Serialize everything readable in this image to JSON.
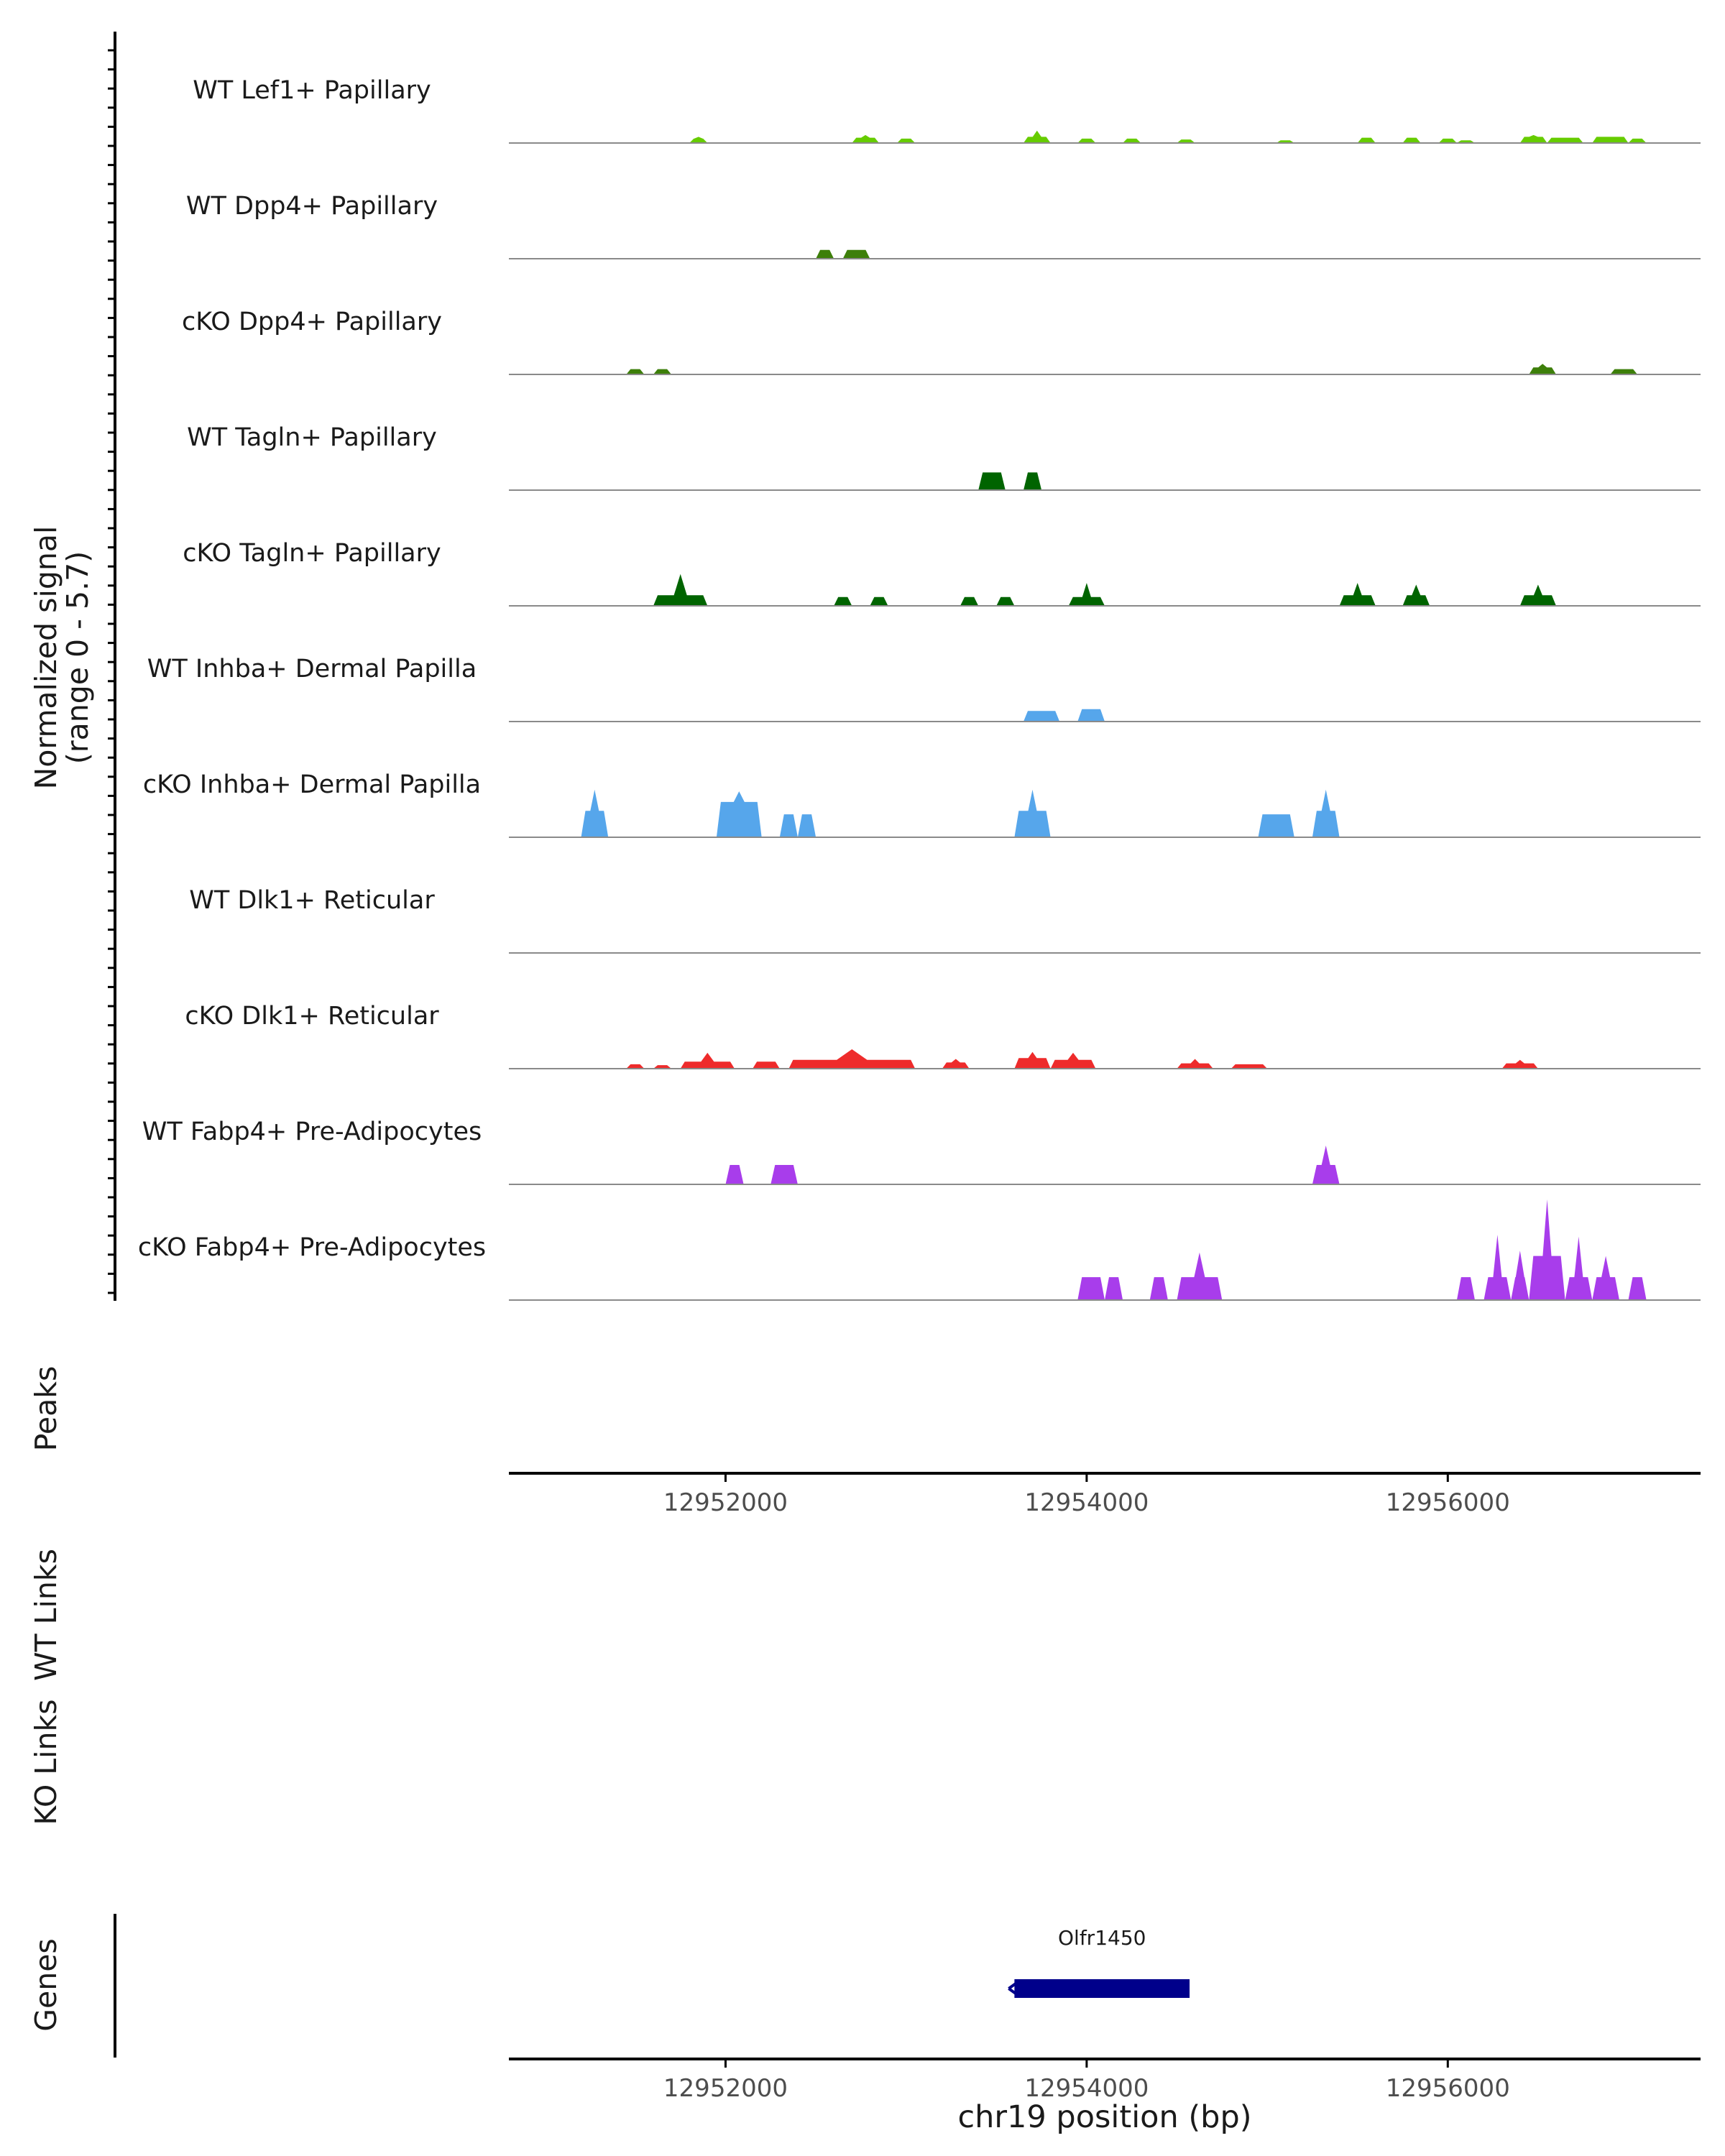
{
  "chart_data": {
    "type": "area",
    "title": "",
    "region": "chr19",
    "xlim": [
      12950800,
      12957400
    ],
    "xlabel": "chr19 position (bp)",
    "x_ticks": [
      12952000,
      12954000,
      12956000
    ],
    "x_tick_labels": [
      "12952000",
      "12954000",
      "12956000"
    ],
    "coverage": {
      "ylabel_line1": "Normalized signal",
      "ylabel_line2": "(range 0 - 5.7)",
      "ylim": [
        0,
        5.7
      ],
      "tracks": [
        {
          "name": "WT Lef1+ Papillary",
          "color": "#66CC00",
          "peaks": [
            [
              12951800,
              12951900,
              0.25,
              0.35
            ],
            [
              12952700,
              12952850,
              0.3,
              0.45
            ],
            [
              12952950,
              12953050,
              0.25
            ],
            [
              12953650,
              12953800,
              0.35,
              0.7
            ],
            [
              12953950,
              12954050,
              0.25
            ],
            [
              12954200,
              12954300,
              0.25
            ],
            [
              12954500,
              12954600,
              0.2
            ],
            [
              12955050,
              12955150,
              0.15
            ],
            [
              12955500,
              12955600,
              0.3
            ],
            [
              12955750,
              12955850,
              0.3
            ],
            [
              12955950,
              12956050,
              0.25
            ],
            [
              12956050,
              12956150,
              0.15
            ],
            [
              12956400,
              12956550,
              0.35,
              0.45
            ],
            [
              12956550,
              12956750,
              0.3
            ],
            [
              12956800,
              12957000,
              0.35
            ],
            [
              12957000,
              12957100,
              0.25
            ]
          ]
        },
        {
          "name": "WT Dpp4+ Papillary",
          "color": "#3D7F0A",
          "peaks": [
            [
              12952500,
              12952600,
              0.5
            ],
            [
              12952650,
              12952800,
              0.5
            ]
          ]
        },
        {
          "name": "cKO Dpp4+ Papillary",
          "color": "#3D7F0A",
          "peaks": [
            [
              12951450,
              12951550,
              0.3
            ],
            [
              12951600,
              12951700,
              0.3
            ],
            [
              12956450,
              12956600,
              0.4,
              0.6
            ],
            [
              12956900,
              12957050,
              0.3
            ]
          ]
        },
        {
          "name": "WT Tagln+ Papillary",
          "color": "#006400",
          "peaks": [
            [
              12953400,
              12953550,
              1.0
            ],
            [
              12953650,
              12953750,
              1.0
            ]
          ]
        },
        {
          "name": "cKO Tagln+ Papillary",
          "color": "#006400",
          "peaks": [
            [
              12951600,
              12951900,
              0.6,
              1.8
            ],
            [
              12952600,
              12952700,
              0.5
            ],
            [
              12952800,
              12952900,
              0.5
            ],
            [
              12953300,
              12953400,
              0.5
            ],
            [
              12953500,
              12953600,
              0.5
            ],
            [
              12953900,
              12954100,
              0.5,
              1.3
            ],
            [
              12955400,
              12955600,
              0.6,
              1.3
            ],
            [
              12955750,
              12955900,
              0.6,
              1.2
            ],
            [
              12956400,
              12956600,
              0.6,
              1.2
            ]
          ]
        },
        {
          "name": "WT Inhba+ Dermal Papilla",
          "color": "#56A6EB",
          "peaks": [
            [
              12953650,
              12953850,
              0.6
            ],
            [
              12953950,
              12954100,
              0.7
            ]
          ]
        },
        {
          "name": "cKO Inhba+ Dermal Papilla",
          "color": "#56A6EB",
          "peaks": [
            [
              12951200,
              12951350,
              1.5,
              2.7
            ],
            [
              12951950,
              12952200,
              2.0,
              2.6
            ],
            [
              12952300,
              12952400,
              1.3
            ],
            [
              12952400,
              12952500,
              1.3
            ],
            [
              12953600,
              12953800,
              1.5,
              2.7
            ],
            [
              12954950,
              12955150,
              1.3
            ],
            [
              12955250,
              12955400,
              1.5,
              2.7
            ]
          ]
        },
        {
          "name": "WT Dlk1+ Reticular",
          "color": "#EE2B2B",
          "peaks": []
        },
        {
          "name": "cKO Dlk1+ Reticular",
          "color": "#EE2B2B",
          "peaks": [
            [
              12951450,
              12951550,
              0.25
            ],
            [
              12951600,
              12951700,
              0.2
            ],
            [
              12951750,
              12952050,
              0.4,
              0.9
            ],
            [
              12952150,
              12952300,
              0.4
            ],
            [
              12952350,
              12953050,
              0.5,
              1.1
            ],
            [
              12953200,
              12953350,
              0.35,
              0.55
            ],
            [
              12953600,
              12953800,
              0.6,
              0.95
            ],
            [
              12953800,
              12954050,
              0.5,
              0.9
            ],
            [
              12954500,
              12954700,
              0.3,
              0.55
            ],
            [
              12954800,
              12955000,
              0.25
            ],
            [
              12956300,
              12956500,
              0.3,
              0.5
            ]
          ]
        },
        {
          "name": "WT Fabp4+ Pre-Adipocytes",
          "color": "#A83DEB",
          "peaks": [
            [
              12952000,
              12952100,
              1.1
            ],
            [
              12952250,
              12952400,
              1.1
            ],
            [
              12955250,
              12955400,
              1.1,
              2.2
            ]
          ]
        },
        {
          "name": "cKO Fabp4+ Pre-Adipocytes",
          "color": "#A83DEB",
          "peaks": [
            [
              12953950,
              12954100,
              1.3
            ],
            [
              12954100,
              12954200,
              1.3
            ],
            [
              12954350,
              12954450,
              1.3
            ],
            [
              12954500,
              12954750,
              1.3,
              2.7
            ],
            [
              12956050,
              12956150,
              1.3
            ],
            [
              12956200,
              12956350,
              1.3,
              3.7
            ],
            [
              12956350,
              12956450,
              1.3,
              2.8
            ],
            [
              12956450,
              12956650,
              2.5,
              5.7
            ],
            [
              12956650,
              12956800,
              1.3,
              3.6
            ],
            [
              12956800,
              12956950,
              1.3,
              2.5
            ],
            [
              12957000,
              12957100,
              1.3
            ]
          ]
        }
      ]
    },
    "peaks_track": {
      "label": "Peaks",
      "regions": []
    },
    "wt_links": {
      "label": "WT Links",
      "links": []
    },
    "ko_links": {
      "label": "KO Links",
      "links": []
    },
    "genes": {
      "label": "Genes",
      "color": "#00008B",
      "items": [
        {
          "name": "Olfr1450",
          "start": 12953600,
          "end": 12954570,
          "strand": "-"
        }
      ]
    }
  }
}
